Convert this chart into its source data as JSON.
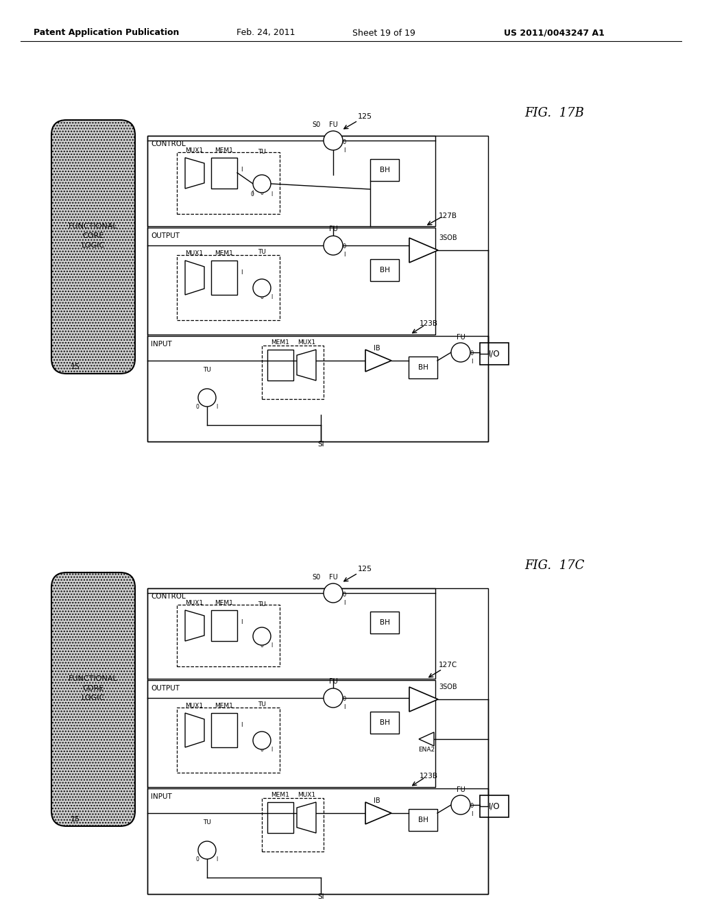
{
  "title_header": "Patent Application Publication",
  "date": "Feb. 24, 2011",
  "sheet": "Sheet 19 of 19",
  "patent_num": "US 2011/0043247 A1",
  "background_color": "#ffffff",
  "text_color": "#000000"
}
